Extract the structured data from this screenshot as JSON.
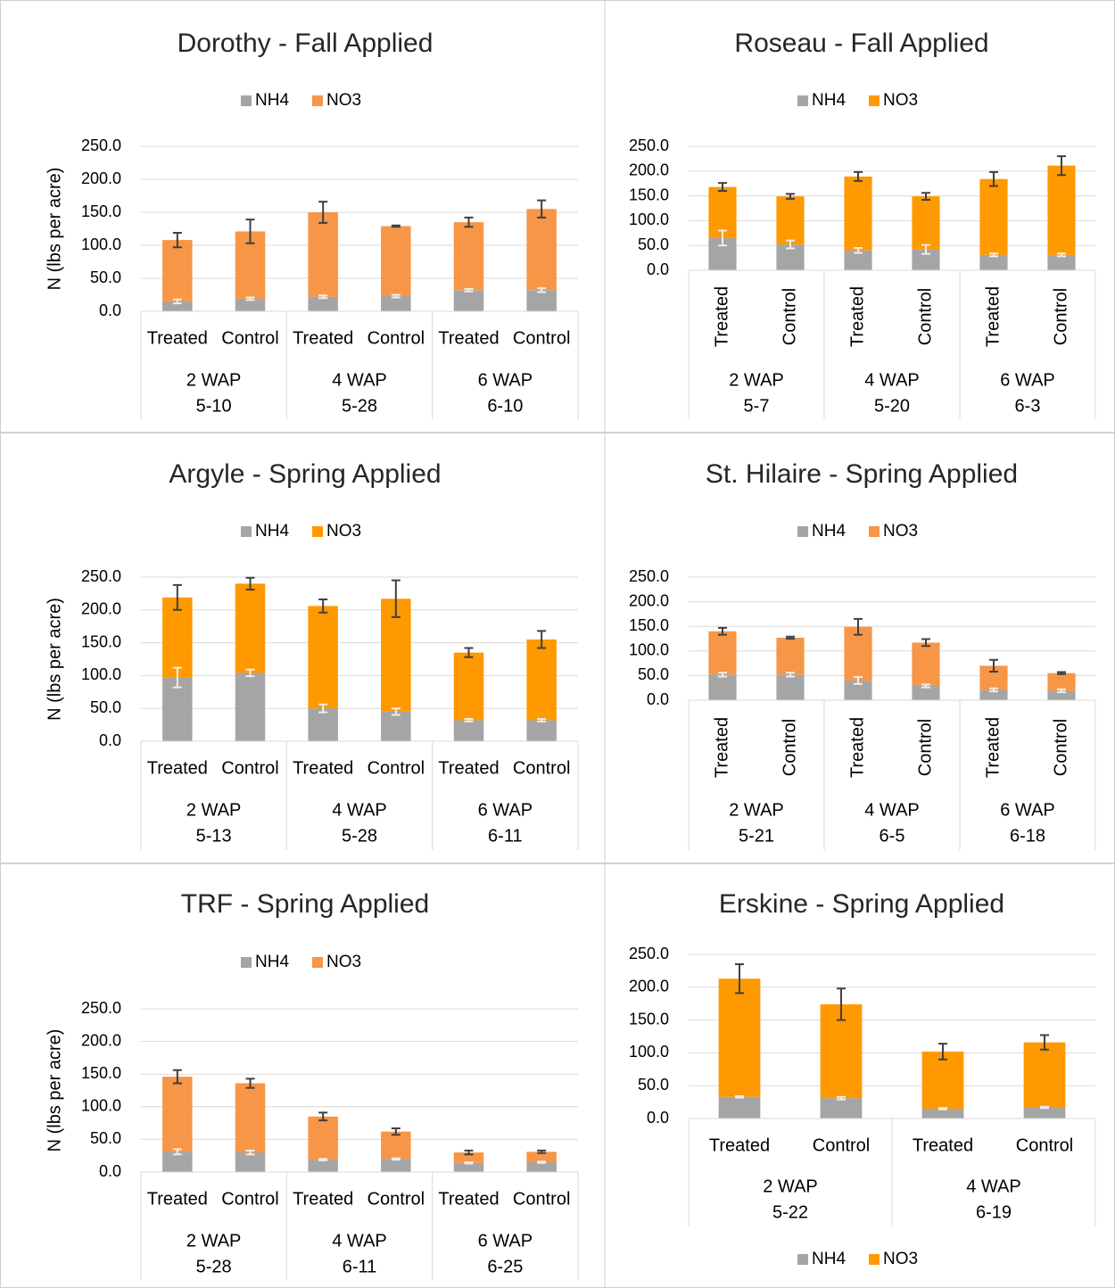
{
  "chart_data": [
    {
      "type": "bar",
      "stacked": true,
      "title": "Dorothy - Fall Applied",
      "y_label": "N (lbs per acre)",
      "legend": "top",
      "rotated_labels": false,
      "categories": [
        "Treated",
        "Control",
        "Treated",
        "Control",
        "Treated",
        "Control"
      ],
      "groups": [
        {
          "name": "2 WAP",
          "date": "5-10"
        },
        {
          "name": "4 WAP",
          "date": "5-28"
        },
        {
          "name": "6 WAP",
          "date": "6-10"
        }
      ],
      "series": [
        {
          "name": "NH4",
          "color": "#A5A5A5",
          "error_color": "#EDEDED",
          "values": [
            15,
            19,
            22,
            23,
            32,
            32
          ],
          "errors": [
            3,
            2,
            2,
            2,
            2,
            3
          ]
        },
        {
          "name": "NO3",
          "color": "#F79646",
          "error_color": "#404040",
          "values": [
            93,
            102,
            128,
            106,
            103,
            123
          ],
          "errors": [
            11,
            18,
            16,
            1,
            7,
            13
          ]
        }
      ],
      "ylim": [
        0,
        250
      ],
      "yticks": [
        {
          "value": 0,
          "label": "0.0"
        },
        {
          "value": 50,
          "label": "50.0"
        },
        {
          "value": 100,
          "label": "100.0"
        },
        {
          "value": 150,
          "label": "150.0"
        },
        {
          "value": 200,
          "label": "200.0"
        },
        {
          "value": 250,
          "label": "250.0"
        }
      ],
      "grid": true
    },
    {
      "type": "bar",
      "stacked": true,
      "title": "Roseau - Fall Applied",
      "legend": "top",
      "rotated_labels": true,
      "categories": [
        "Treated",
        "Control",
        "Treated",
        "Control",
        "Treated",
        "Control"
      ],
      "groups": [
        {
          "name": "2 WAP",
          "date": "5-7"
        },
        {
          "name": "4 WAP",
          "date": "5-20"
        },
        {
          "name": "6 WAP",
          "date": "6-3"
        }
      ],
      "series": [
        {
          "name": "NH4",
          "color": "#A5A5A5",
          "error_color": "#EDEDED",
          "values": [
            65,
            52,
            40,
            42,
            31,
            31
          ],
          "errors": [
            15,
            8,
            5,
            9,
            3,
            3
          ]
        },
        {
          "name": "NO3",
          "color": "#FF9900",
          "error_color": "#404040",
          "values": [
            103,
            97,
            149,
            107,
            153,
            180
          ],
          "errors": [
            8,
            5,
            9,
            7,
            14,
            19
          ]
        }
      ],
      "ylim": [
        0,
        250
      ],
      "yticks": [
        {
          "value": 0,
          "label": "0.0"
        },
        {
          "value": 50,
          "label": "50.0"
        },
        {
          "value": 100,
          "label": "100.0"
        },
        {
          "value": 150,
          "label": "150.0"
        },
        {
          "value": 200,
          "label": "200.0"
        },
        {
          "value": 250,
          "label": "250.0"
        }
      ],
      "grid": true
    },
    {
      "type": "bar",
      "stacked": true,
      "title": "Argyle - Spring Applied",
      "y_label": "N (lbs per acre)",
      "legend": "top",
      "rotated_labels": false,
      "categories": [
        "Treated",
        "Control",
        "Treated",
        "Control",
        "Treated",
        "Control"
      ],
      "groups": [
        {
          "name": "2 WAP",
          "date": "5-13"
        },
        {
          "name": "4 WAP",
          "date": "5-28"
        },
        {
          "name": "6 WAP",
          "date": "6-11"
        }
      ],
      "series": [
        {
          "name": "NH4",
          "color": "#A5A5A5",
          "error_color": "#EDEDED",
          "values": [
            97,
            104,
            50,
            45,
            32,
            32
          ],
          "errors": [
            15,
            5,
            6,
            5,
            2,
            2
          ]
        },
        {
          "name": "NO3",
          "color": "#FF9900",
          "error_color": "#404040",
          "values": [
            122,
            136,
            156,
            172,
            103,
            123
          ],
          "errors": [
            19,
            9,
            10,
            28,
            7,
            13
          ]
        }
      ],
      "ylim": [
        0,
        250
      ],
      "yticks": [
        {
          "value": 0,
          "label": "0.0"
        },
        {
          "value": 50,
          "label": "50.0"
        },
        {
          "value": 100,
          "label": "100.0"
        },
        {
          "value": 150,
          "label": "150.0"
        },
        {
          "value": 200,
          "label": "200.0"
        },
        {
          "value": 250,
          "label": "250.0"
        }
      ],
      "grid": true
    },
    {
      "type": "bar",
      "stacked": true,
      "title": "St. Hilaire - Spring Applied",
      "legend": "top",
      "rotated_labels": true,
      "categories": [
        "Treated",
        "Control",
        "Treated",
        "Control",
        "Treated",
        "Control"
      ],
      "groups": [
        {
          "name": "2 WAP",
          "date": "5-21"
        },
        {
          "name": "4 WAP",
          "date": "6-5"
        },
        {
          "name": "6 WAP",
          "date": "6-18"
        }
      ],
      "series": [
        {
          "name": "NH4",
          "color": "#A5A5A5",
          "error_color": "#EDEDED",
          "values": [
            52,
            52,
            40,
            29,
            21,
            19
          ],
          "errors": [
            4,
            4,
            7,
            3,
            3,
            3
          ]
        },
        {
          "name": "NO3",
          "color": "#F79646",
          "error_color": "#404040",
          "values": [
            88,
            75,
            109,
            88,
            49,
            36
          ],
          "errors": [
            7,
            2,
            16,
            7,
            12,
            2
          ]
        }
      ],
      "ylim": [
        0,
        250
      ],
      "yticks": [
        {
          "value": 0,
          "label": "0.0"
        },
        {
          "value": 50,
          "label": "50.0"
        },
        {
          "value": 100,
          "label": "100.0"
        },
        {
          "value": 150,
          "label": "150.0"
        },
        {
          "value": 200,
          "label": "200.0"
        },
        {
          "value": 250,
          "label": "250.0"
        }
      ],
      "grid": true
    },
    {
      "type": "bar",
      "stacked": true,
      "title": "TRF - Spring Applied",
      "y_label": "N (lbs per acre)",
      "legend": "top",
      "rotated_labels": false,
      "categories": [
        "Treated",
        "Control",
        "Treated",
        "Control",
        "Treated",
        "Control"
      ],
      "groups": [
        {
          "name": "2 WAP",
          "date": "5-28"
        },
        {
          "name": "4 WAP",
          "date": "6-11"
        },
        {
          "name": "6 WAP",
          "date": "6-25"
        }
      ],
      "series": [
        {
          "name": "NH4",
          "color": "#A5A5A5",
          "error_color": "#EDEDED",
          "values": [
            31,
            30,
            19,
            20,
            14,
            15
          ],
          "errors": [
            4,
            3,
            1,
            1,
            1,
            1
          ]
        },
        {
          "name": "NO3",
          "color": "#F79646",
          "error_color": "#404040",
          "values": [
            115,
            106,
            66,
            42,
            16,
            16
          ],
          "errors": [
            10,
            7,
            6,
            5,
            3,
            2
          ]
        }
      ],
      "ylim": [
        0,
        250
      ],
      "yticks": [
        {
          "value": 0,
          "label": "0.0"
        },
        {
          "value": 50,
          "label": "50.0"
        },
        {
          "value": 100,
          "label": "100.0"
        },
        {
          "value": 150,
          "label": "150.0"
        },
        {
          "value": 200,
          "label": "200.0"
        },
        {
          "value": 250,
          "label": "250.0"
        }
      ],
      "grid": true
    },
    {
      "type": "bar",
      "stacked": true,
      "title": "Erskine - Spring Applied",
      "legend": "bottom",
      "rotated_labels": false,
      "categories": [
        "Treated",
        "Control",
        "Treated",
        "Control"
      ],
      "groups": [
        {
          "name": "2 WAP",
          "date": "5-22"
        },
        {
          "name": "4 WAP",
          "date": "6-19"
        }
      ],
      "series": [
        {
          "name": "NH4",
          "color": "#A5A5A5",
          "error_color": "#EDEDED",
          "values": [
            33,
            31,
            15,
            17
          ],
          "errors": [
            1,
            2,
            1,
            1
          ]
        },
        {
          "name": "NO3",
          "color": "#FF9900",
          "error_color": "#404040",
          "values": [
            180,
            143,
            87,
            99
          ],
          "errors": [
            22,
            24,
            12,
            11
          ]
        }
      ],
      "ylim": [
        0,
        250
      ],
      "yticks": [
        {
          "value": 0,
          "label": "0.0"
        },
        {
          "value": 50,
          "label": "50.0"
        },
        {
          "value": 100,
          "label": "100.0"
        },
        {
          "value": 150,
          "label": "150.0"
        },
        {
          "value": 200,
          "label": "200.0"
        },
        {
          "value": 250,
          "label": "250.0"
        }
      ],
      "grid": true
    }
  ]
}
